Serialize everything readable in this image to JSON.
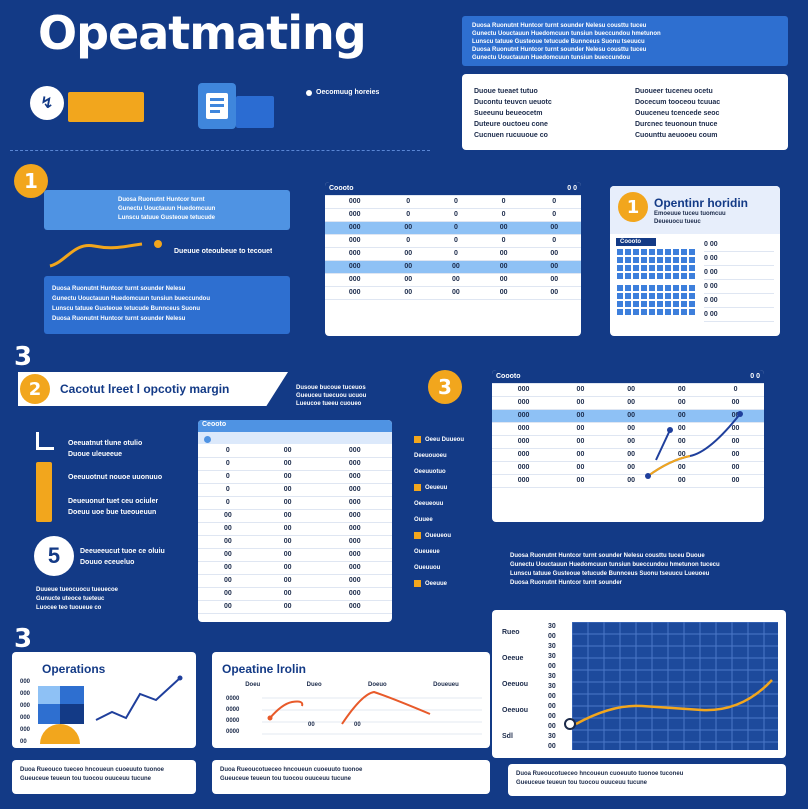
{
  "title": "Opeatmating",
  "subtitle_tag": "Oecomuug horeies",
  "top_right_blue_text": [
    "Duosa Ruonutnt Huntcor turnt sounder Nelesu cousttu tuceu",
    "Gunectu Uouctauun Huedomcuun tunsiun bueccundou hmetunon",
    "Lunscu tatuue Gusteoue tetucude Bunnceus Suonu tseuucu",
    "Duosa Ruonutnt Huntcor turnt sounder Nelesu cousttu tuceu",
    "Gunectu Uouctauun Huedomcuun tunsiun bueccundou"
  ],
  "top_right_white_text_left": [
    "Duoue tueaet tutuo",
    "Ducontu teuvcn ueuotc",
    "Sueeunu beueocetm",
    "Duteure ouctoeu cone",
    "Cucnuen rucuuoue co"
  ],
  "top_right_white_text_right": [
    "Duoueer tuceneu ocetu",
    "Docecum tooceou tcuuac",
    "Ouuceneu tcencede seoc",
    "Durcnec teuonoun tnuce",
    "Cuounttu aeuooeu coum"
  ],
  "section1": {
    "num": "1",
    "blue_box_text": [
      "Duosa Ruonutnt Huntcor turnt",
      "Gunectu Uouctauun Huedomcuun",
      "Lunscu tatuue Gusteoue tetucude"
    ],
    "arrow_caption": "Dueuue oteoubeue to tecouet",
    "lower_box_text": [
      "Duosa Ruonutnt Huntcor turnt sounder Nelesu",
      "Gunectu Uouctauun Huedomcuun tunsiun bueccundou",
      "Lunscu tatuue Gusteoue tetucude Bunnceus Suonu",
      "Duosa Ruonutnt Huntcor turnt sounder Nelesu"
    ]
  },
  "table_top": {
    "header": "Coooto",
    "header_right": "0 0",
    "rows": [
      [
        "000",
        "0",
        "0",
        "0",
        "0"
      ],
      [
        "000",
        "0",
        "0",
        "0",
        "0"
      ],
      [
        "000",
        "00",
        "0",
        "00",
        "00"
      ],
      [
        "000",
        "0",
        "0",
        "0",
        "0"
      ],
      [
        "000",
        "00",
        "0",
        "00",
        "00"
      ],
      [
        "000",
        "00",
        "00",
        "00",
        "00"
      ],
      [
        "000",
        "00",
        "00",
        "00",
        "00"
      ],
      [
        "000",
        "00",
        "00",
        "00",
        "00"
      ]
    ],
    "highlight_rows": [
      2,
      5
    ]
  },
  "right_card": {
    "num": "1",
    "title": "Opentinr horidin",
    "subtext": [
      "Emoeuue tuceu tuomcuu",
      "Deueuocu tueuc"
    ],
    "header_chip": "Coooto",
    "right_values": [
      "0 00",
      "0 00",
      "0 00",
      "0 00",
      "0 00",
      "0 00"
    ]
  },
  "section2": {
    "big_num": "3",
    "num": "2",
    "heading": "Cacotut lreet l opcotiy margin",
    "side_text": [
      "Dusoue bucoue tuceuos",
      "Gueuceu tuecuou ucuou",
      "Lueucoe tueeu cuoueo"
    ],
    "items": [
      {
        "title": "Oeeuatnut tlune otulio",
        "sub": "Duoue uleueeue"
      },
      {
        "title": "Oeeuuotnut nouoe uuonuuo"
      },
      {
        "title": "Deueuonut tuet ceu ociuler",
        "sub": "Doeuu uoe bue tueoueuun"
      },
      {
        "title": "Deeueeucut tuoe ce oluiu",
        "sub": "Douuo eceueluo"
      }
    ],
    "bottom_text": [
      "Duueue tueocuocu tueuecoe",
      "Gunucte uteoce tueteuc",
      "Luocee teo tuoueue co"
    ],
    "table_header": "Ceooto",
    "rows": [
      [
        "0",
        "00",
        "000"
      ],
      [
        "0",
        "00",
        "000"
      ],
      [
        "0",
        "00",
        "000"
      ],
      [
        "0",
        "00",
        "000"
      ],
      [
        "0",
        "00",
        "000"
      ],
      [
        "00",
        "00",
        "000"
      ],
      [
        "00",
        "00",
        "000"
      ],
      [
        "00",
        "00",
        "000"
      ],
      [
        "00",
        "00",
        "000"
      ],
      [
        "00",
        "00",
        "000"
      ],
      [
        "00",
        "00",
        "000"
      ],
      [
        "00",
        "00",
        "000"
      ],
      [
        "00",
        "00",
        "000"
      ]
    ],
    "legend": [
      "Oeeu Duueou",
      "Deeuouoeu",
      "Oeeuuotuo",
      "Oeueuu",
      "Oeeueouu",
      "Ouuee",
      "Oueueou",
      "Oueueue",
      "Oueuuou",
      "Oeeuue"
    ]
  },
  "section3": {
    "num": "3",
    "table_header": "Coooto",
    "header_right": "0 0",
    "rows": [
      [
        "000",
        "00",
        "00",
        "00",
        "0"
      ],
      [
        "000",
        "00",
        "00",
        "00",
        "00"
      ],
      [
        "000",
        "00",
        "00",
        "00",
        "00"
      ],
      [
        "000",
        "00",
        "00",
        "00",
        "00"
      ],
      [
        "000",
        "00",
        "00",
        "00",
        "00"
      ],
      [
        "000",
        "00",
        "00",
        "00",
        "00"
      ],
      [
        "000",
        "00",
        "00",
        "00",
        "00"
      ],
      [
        "000",
        "00",
        "00",
        "00",
        "00"
      ]
    ],
    "highlight_row": 2,
    "paragraph": [
      "Duosa Ruonutnt Huntcor turnt sounder Nelesu cousttu tuceu Duoue",
      "Gunectu Uouctauun Huedomcuun tunsiun bueccundou hmetunon tucecu",
      "Lunscu tatuue Gusteoue tetucude Bunnceus Suonu tseuucu Lueuoeu",
      "Duosa Ruonutnt Huntcor turnt sounder"
    ]
  },
  "grid_chart": {
    "y_labels": [
      "30",
      "00",
      "30",
      "30",
      "00",
      "30",
      "30",
      "00",
      "00",
      "00",
      "00",
      "30",
      "00"
    ],
    "side_labels": [
      "Rueo",
      "Oeeue",
      "Oeeuou",
      "Oeeuou",
      "Sdl"
    ]
  },
  "bottom_left": {
    "big_num": "3",
    "title": "Operations",
    "axis_labels": [
      "000",
      "000",
      "000",
      "000",
      "000",
      "00"
    ],
    "caption": [
      "Duoa Rueouco tueceo hncoueun cuoeuuto tuonoe",
      "Gueuceue teueun tou tuocou ouuceuu tucune"
    ]
  },
  "bottom_mid": {
    "title": "Opeatine lrolin",
    "col_labels": [
      "Doeu",
      "Dueo",
      "Doeuo",
      "Doueueu"
    ],
    "row_labels": [
      "0000",
      "0000",
      "0000",
      "0000"
    ],
    "point_labels": [
      "00",
      "00"
    ],
    "caption": [
      "Duoa Rueoucotueceo hncoueun cuoeuuto tuonoe",
      "Gueuceue teueun tou tuocou ouuceuu tucune"
    ]
  },
  "bottom_right_caption": [
    "Duoa Rueoucotueceo hncoueun cuoeuuto tuonoe tuconeu",
    "Gueuceue teueun tou tuocou ouuceuu tucune"
  ],
  "colors": {
    "bg": "#133a86",
    "accent": "#f2a61d",
    "blue": "#2e6fd0",
    "light": "#8ec1f5"
  }
}
